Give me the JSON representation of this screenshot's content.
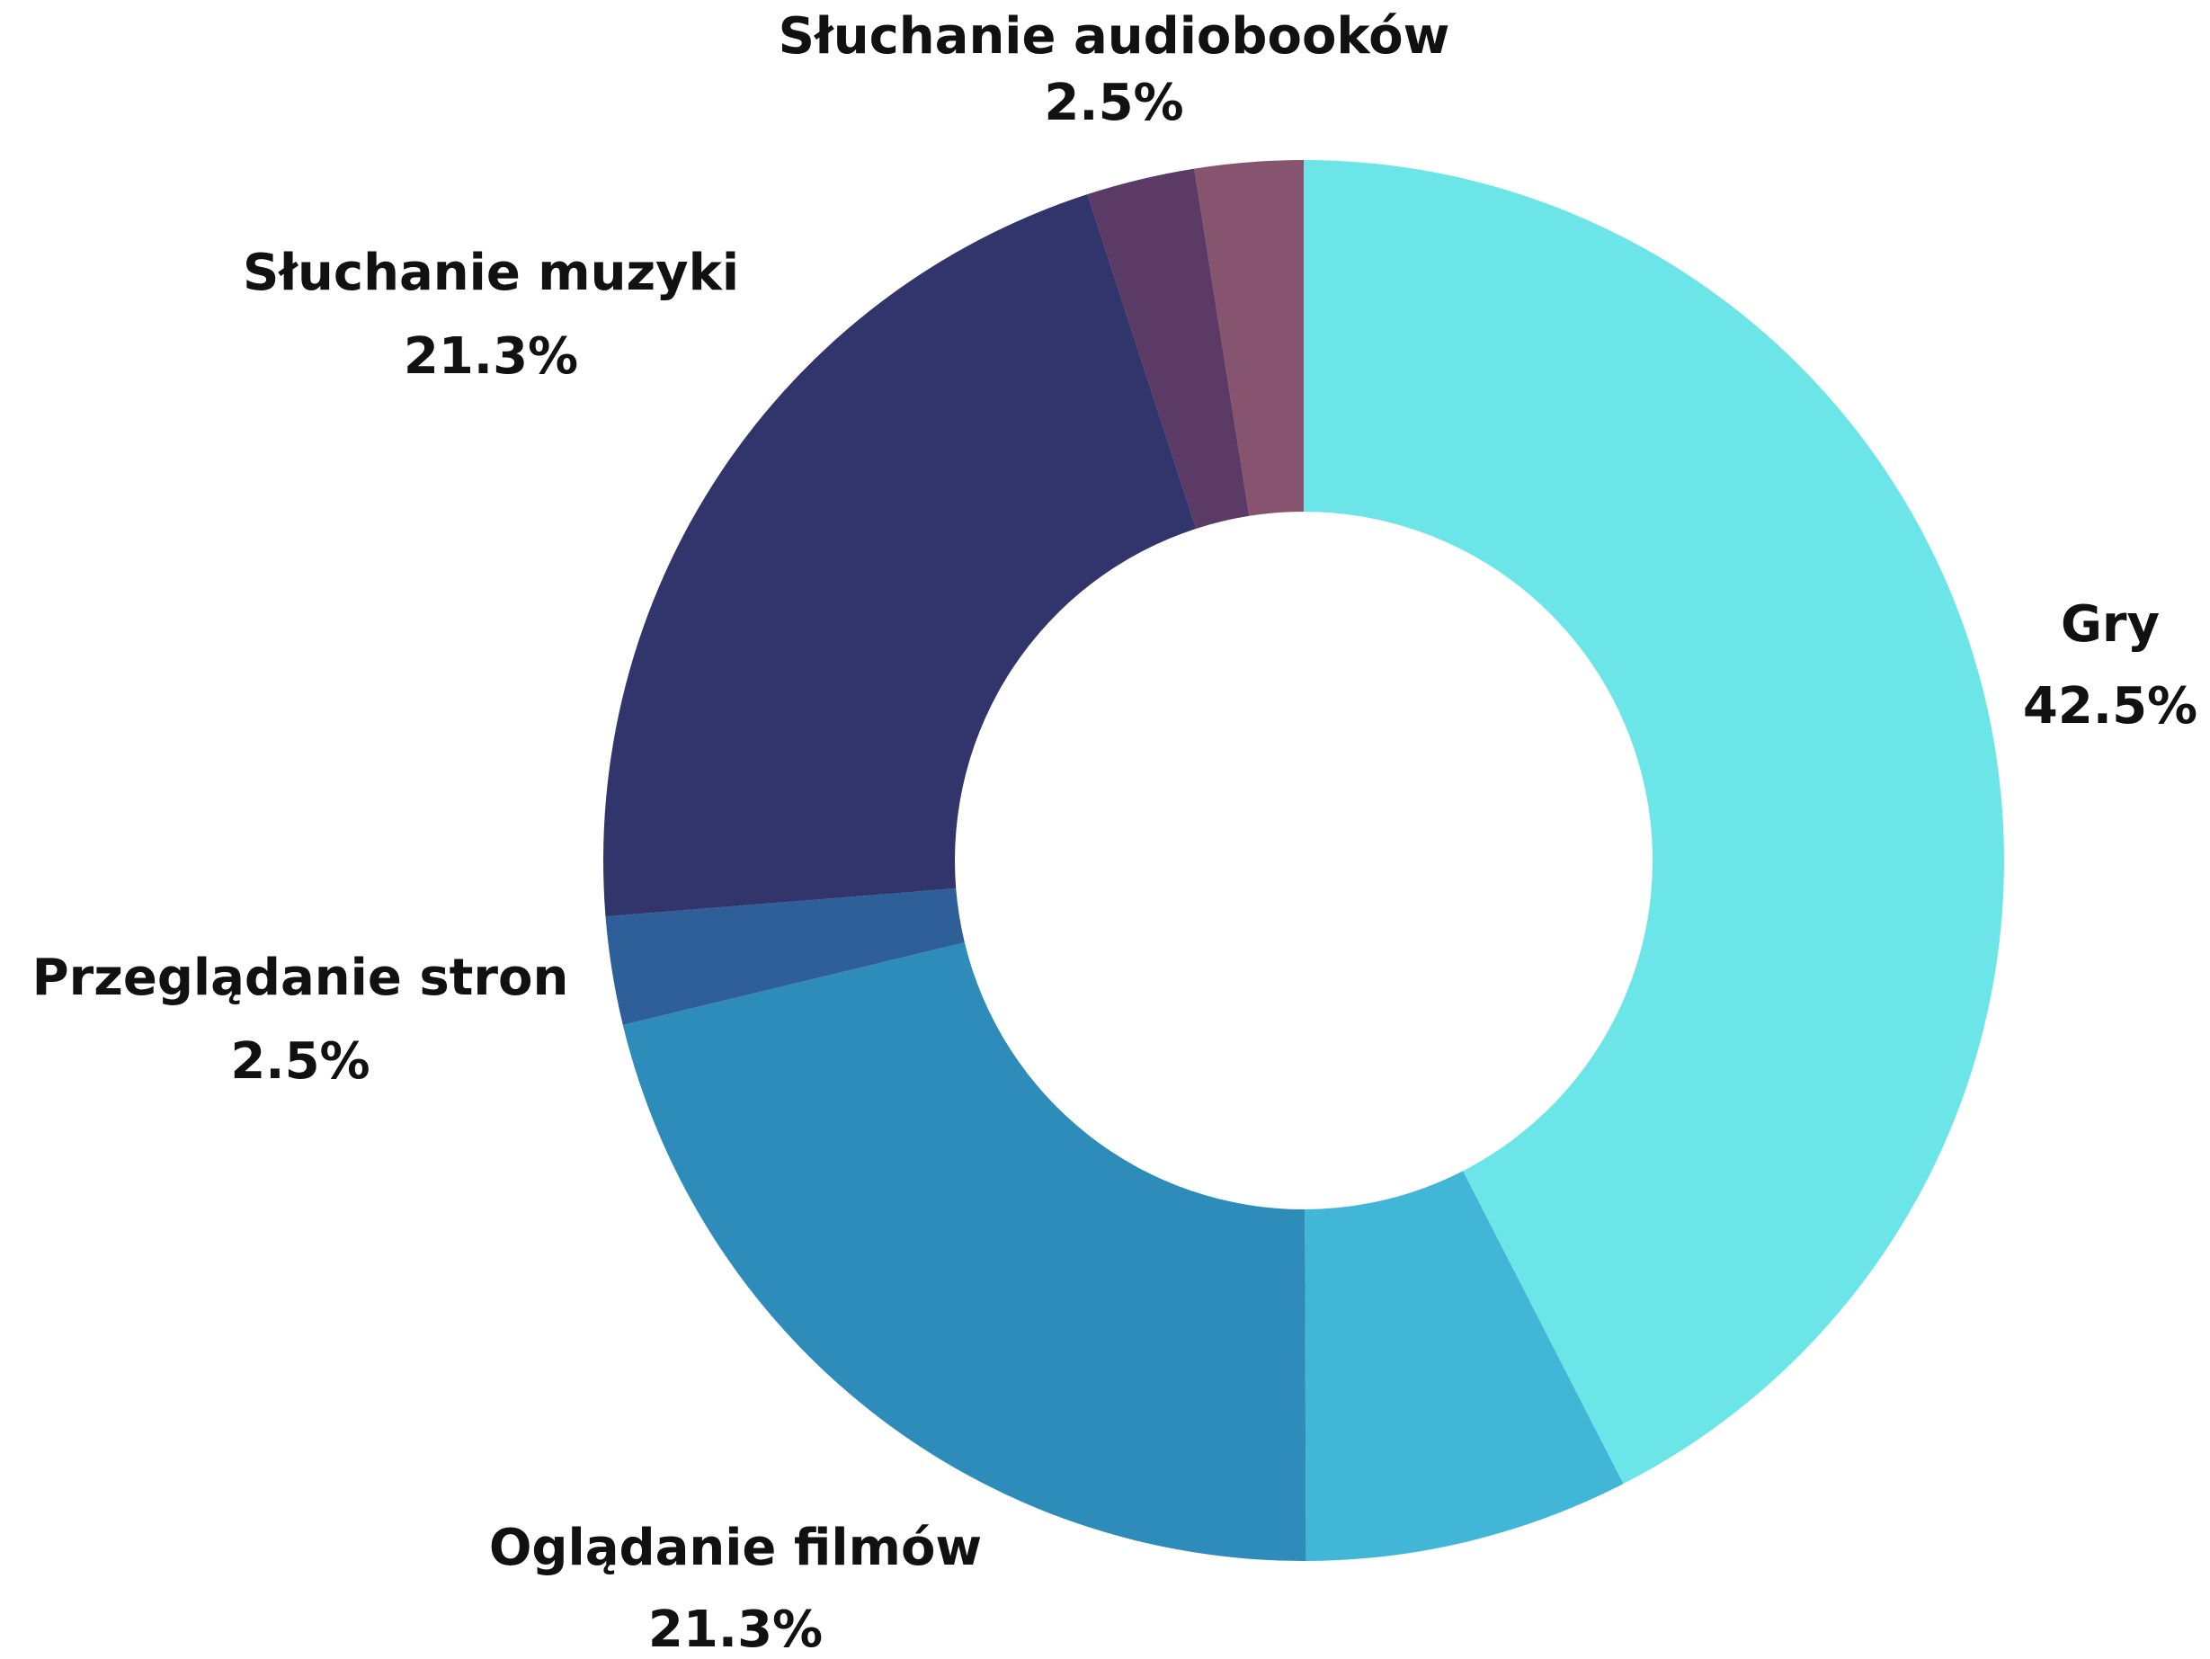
{
  "chart_data": {
    "type": "donut",
    "categories": [
      "Gry",
      null,
      "Oglądanie filmów",
      "Przeglądanie stron",
      "Słuchanie muzyki",
      "Słuchanie audiobooków",
      null
    ],
    "values": [
      42.5,
      7.5,
      21.3,
      2.5,
      21.3,
      2.5,
      2.5
    ],
    "value_labels": [
      "42.5%",
      null,
      "21.3%",
      "2.5%",
      "21.3%",
      "2.5%",
      null
    ],
    "colors": [
      "#6ce5e8",
      "#41b6d6",
      "#2e8cba",
      "#2e5f98",
      "#31356b",
      "#5c3a66",
      "#87546f"
    ]
  }
}
